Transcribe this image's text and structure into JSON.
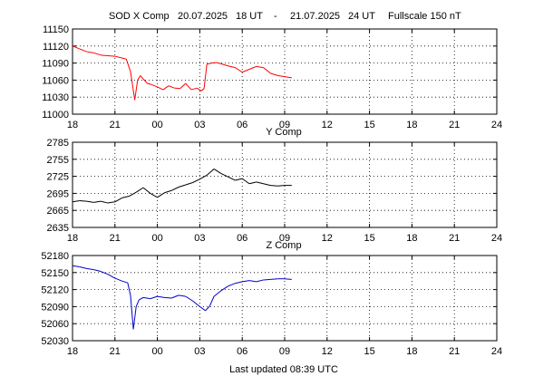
{
  "header": {
    "station": "SOD X Comp",
    "start_date": "20.07.2025",
    "start_time": "18 UT",
    "separator": "-",
    "end_date": "21.07.2025",
    "end_time": "24 UT",
    "fullscale": "Fullscale 150 nT"
  },
  "footer": {
    "last_updated": "Last updated  08:39 UTC"
  },
  "chart_data": [
    {
      "type": "line",
      "name": "x-comp",
      "title": "",
      "color": "#ff0000",
      "xlim": [
        0,
        30
      ],
      "xticks": [
        0,
        3,
        6,
        9,
        12,
        15,
        18,
        21,
        24,
        27,
        30
      ],
      "xtick_labels": [
        "18",
        "21",
        "00",
        "03",
        "06",
        "09",
        "12",
        "15",
        "18",
        "21",
        "24"
      ],
      "ylim": [
        11000,
        11150
      ],
      "yticks": [
        11000,
        11030,
        11060,
        11090,
        11120,
        11150
      ],
      "x": [
        0,
        0.5,
        1,
        1.5,
        2,
        2.5,
        3,
        3.8,
        4.1,
        4.4,
        4.6,
        4.8,
        5,
        5.3,
        5.6,
        6,
        6.4,
        6.8,
        7.2,
        7.6,
        8,
        8.4,
        8.8,
        9.1,
        9.3,
        9.5,
        9.8,
        10.2,
        10.6,
        11,
        11.5,
        12,
        12.5,
        13,
        13.5,
        14,
        14.5,
        15,
        15.5
      ],
      "y": [
        11120,
        11115,
        11110,
        11108,
        11104,
        11103,
        11102,
        11097,
        11075,
        11025,
        11060,
        11068,
        11062,
        11054,
        11052,
        11048,
        11043,
        11050,
        11046,
        11045,
        11054,
        11043,
        11046,
        11041,
        11045,
        11088,
        11090,
        11091,
        11088,
        11085,
        11082,
        11074,
        11079,
        11084,
        11082,
        11072,
        11068,
        11066,
        11064
      ]
    },
    {
      "type": "line",
      "name": "y-comp",
      "title": "Y Comp",
      "color": "#000000",
      "xlim": [
        0,
        30
      ],
      "xticks": [
        0,
        3,
        6,
        9,
        12,
        15,
        18,
        21,
        24,
        27,
        30
      ],
      "xtick_labels": [
        "18",
        "21",
        "00",
        "03",
        "06",
        "09",
        "12",
        "15",
        "18",
        "21",
        "24"
      ],
      "ylim": [
        2635,
        2785
      ],
      "yticks": [
        2635,
        2665,
        2695,
        2725,
        2755,
        2785
      ],
      "x": [
        0,
        0.5,
        1,
        1.5,
        2,
        2.5,
        3,
        3.5,
        4,
        4.5,
        5,
        5.5,
        6,
        6.5,
        7,
        7.5,
        8,
        8.5,
        9,
        9.5,
        10,
        10.5,
        11,
        11.5,
        12,
        12.5,
        13,
        13.5,
        14,
        14.5,
        15,
        15.5
      ],
      "y": [
        2680,
        2682,
        2681,
        2679,
        2681,
        2678,
        2680,
        2687,
        2690,
        2697,
        2705,
        2695,
        2688,
        2696,
        2700,
        2706,
        2710,
        2714,
        2720,
        2727,
        2738,
        2730,
        2724,
        2718,
        2721,
        2712,
        2715,
        2712,
        2709,
        2708,
        2709,
        2709
      ]
    },
    {
      "type": "line",
      "name": "z-comp",
      "title": "Z Comp",
      "color": "#0000cc",
      "xlim": [
        0,
        30
      ],
      "xticks": [
        0,
        3,
        6,
        9,
        12,
        15,
        18,
        21,
        24,
        27,
        30
      ],
      "xtick_labels": [
        "18",
        "21",
        "00",
        "03",
        "06",
        "09",
        "12",
        "15",
        "18",
        "21",
        "24"
      ],
      "ylim": [
        52030,
        52180
      ],
      "yticks": [
        52030,
        52060,
        52090,
        52120,
        52150,
        52180
      ],
      "x": [
        0,
        0.5,
        1,
        1.5,
        2,
        2.5,
        3,
        3.5,
        3.9,
        4.1,
        4.3,
        4.5,
        4.7,
        5,
        5.5,
        6,
        6.5,
        7,
        7.5,
        8,
        8.5,
        9,
        9.4,
        9.7,
        10,
        10.5,
        11,
        11.5,
        12,
        12.5,
        13,
        13.5,
        14,
        14.5,
        15,
        15.5
      ],
      "y": [
        52162,
        52160,
        52157,
        52155,
        52152,
        52147,
        52140,
        52135,
        52132,
        52110,
        52050,
        52090,
        52102,
        52106,
        52104,
        52108,
        52106,
        52105,
        52110,
        52108,
        52100,
        52090,
        52083,
        52091,
        52108,
        52118,
        52126,
        52131,
        52134,
        52136,
        52134,
        52137,
        52138,
        52139,
        52139,
        52138
      ]
    }
  ]
}
